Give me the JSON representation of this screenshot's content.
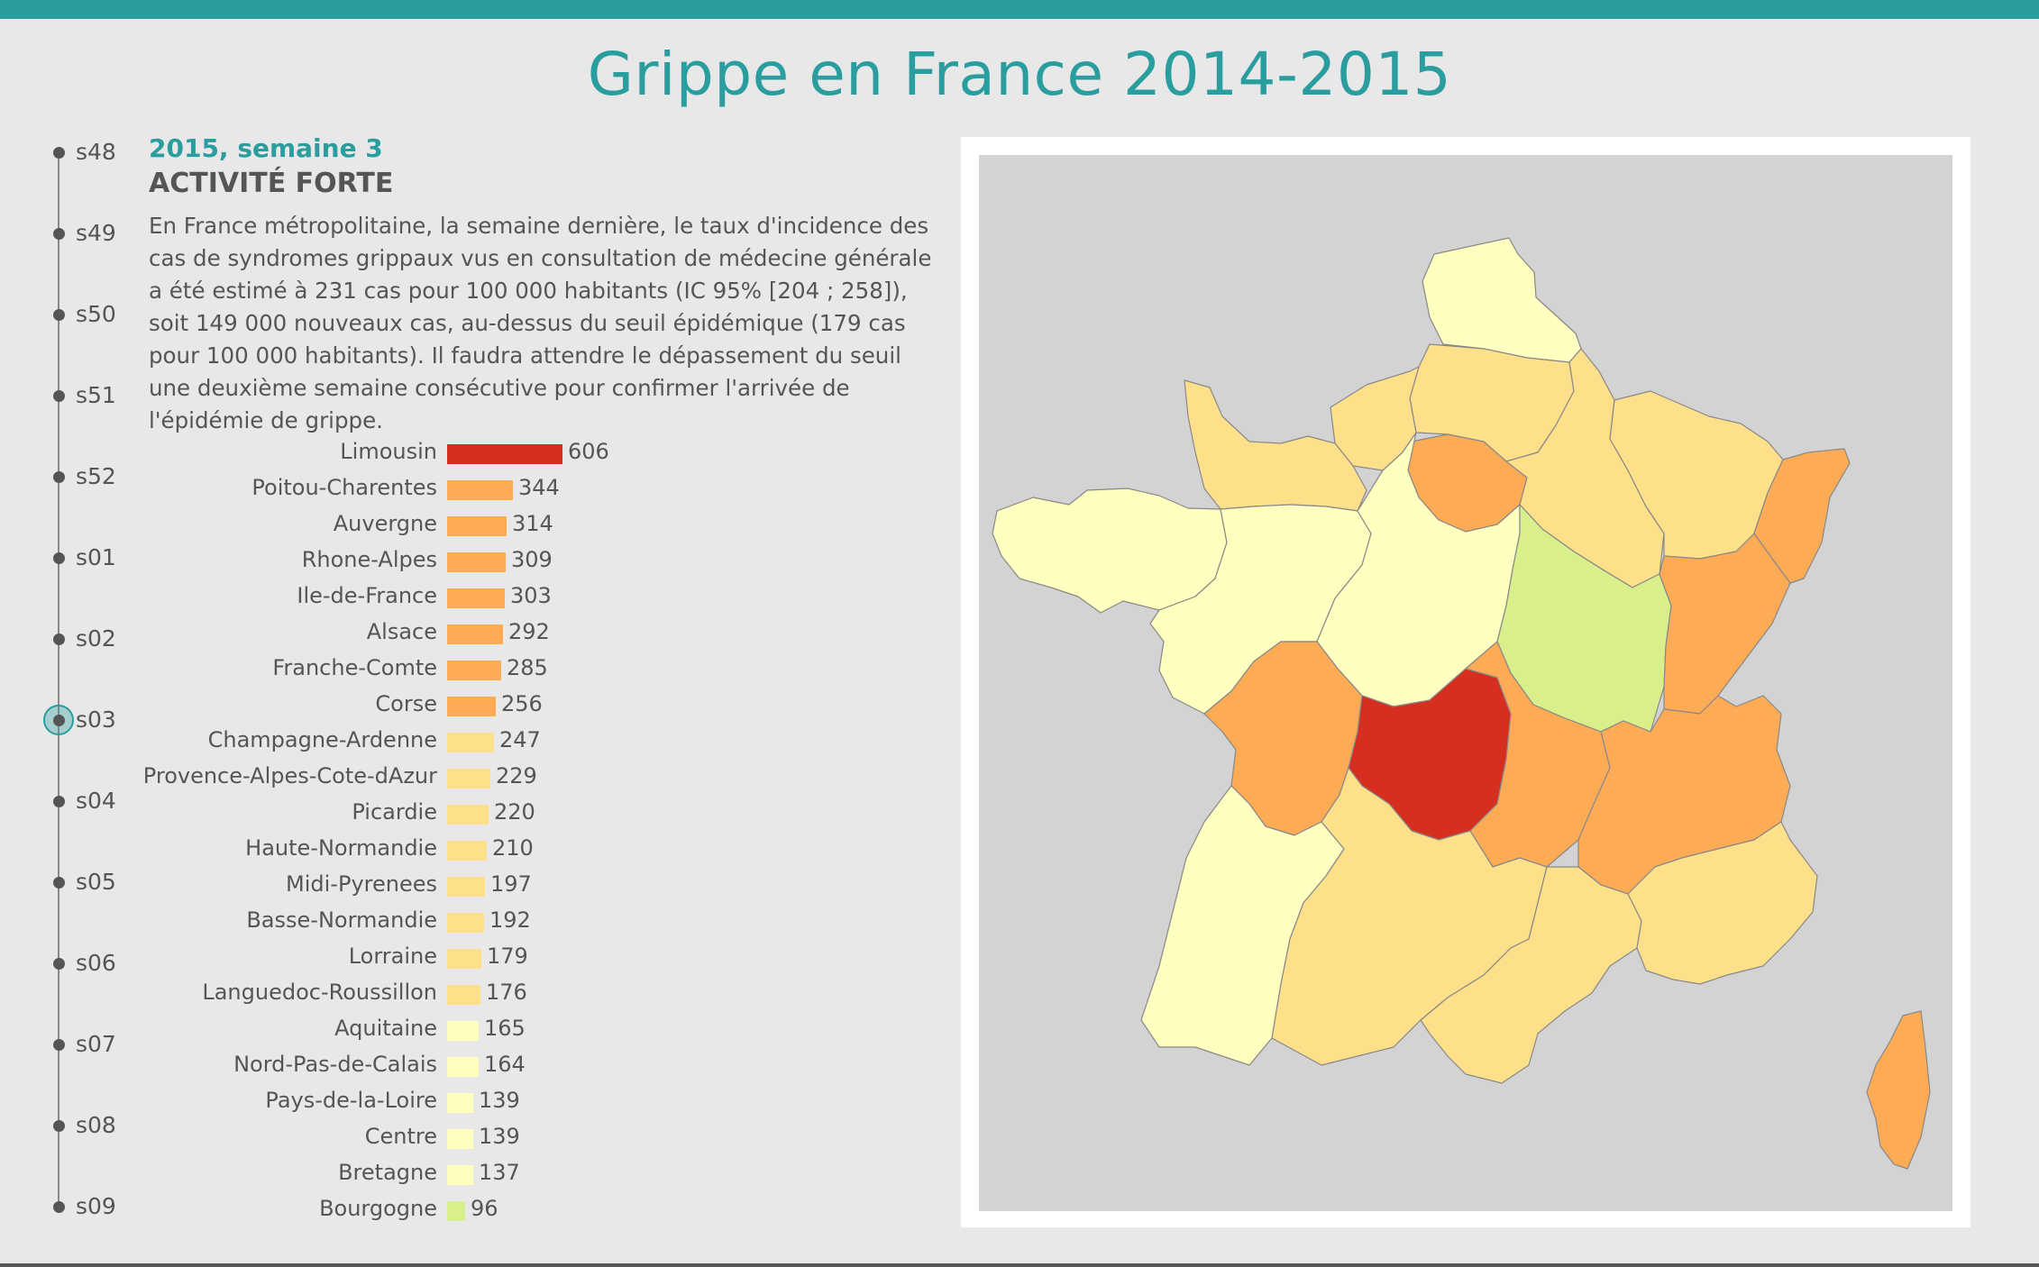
{
  "page": {
    "title": "Grippe en France 2014-2015"
  },
  "timeline": {
    "weeks": [
      "s48",
      "s49",
      "s50",
      "s51",
      "s52",
      "s01",
      "s02",
      "s03",
      "s04",
      "s05",
      "s06",
      "s07",
      "s08",
      "s09"
    ],
    "selected": "s03"
  },
  "info": {
    "week_title": "2015, semaine 3",
    "activity": "ACTIVITÉ FORTE",
    "description": "En France métropolitaine, la semaine dernière, le taux d'incidence des cas de syndromes grippaux vus en consultation de médecine générale a été estimé à 231 cas pour 100 000 habitants (IC 95% [204 ; 258]), soit 149 000 nouveaux cas, au-dessus du seuil épidémique (179 cas pour 100 000 habitants). Il faudra attendre le dépassement du seuil une deuxième semaine consécutive pour confirmer l'arrivée de l'épidémie de grippe."
  },
  "colors": {
    "accent": "#2a9d9f",
    "very_high": "#d62f1f",
    "high": "#fdab55",
    "medium": "#fee08b",
    "low": "#ffffbf",
    "very_low": "#d9ef8b"
  },
  "chart_data": {
    "type": "bar",
    "orientation": "horizontal",
    "categories": [
      "Limousin",
      "Poitou-Charentes",
      "Auvergne",
      "Rhone-Alpes",
      "Ile-de-France",
      "Alsace",
      "Franche-Comte",
      "Corse",
      "Champagne-Ardenne",
      "Provence-Alpes-Cote-dAzur",
      "Picardie",
      "Haute-Normandie",
      "Midi-Pyrenees",
      "Basse-Normandie",
      "Lorraine",
      "Languedoc-Roussillon",
      "Aquitaine",
      "Nord-Pas-de-Calais",
      "Pays-de-la-Loire",
      "Centre",
      "Bretagne",
      "Bourgogne"
    ],
    "values": [
      606,
      344,
      314,
      309,
      303,
      292,
      285,
      256,
      247,
      229,
      220,
      210,
      197,
      192,
      179,
      176,
      165,
      164,
      139,
      139,
      137,
      96
    ],
    "colors": [
      "#d62f1f",
      "#fdab55",
      "#fdab55",
      "#fdab55",
      "#fdab55",
      "#fdab55",
      "#fdab55",
      "#fdab55",
      "#fee08b",
      "#fee08b",
      "#fee08b",
      "#fee08b",
      "#fee08b",
      "#fee08b",
      "#fee08b",
      "#fee08b",
      "#ffffbf",
      "#ffffbf",
      "#ffffbf",
      "#ffffbf",
      "#ffffbf",
      "#d9ef8b"
    ],
    "grid": false
  }
}
